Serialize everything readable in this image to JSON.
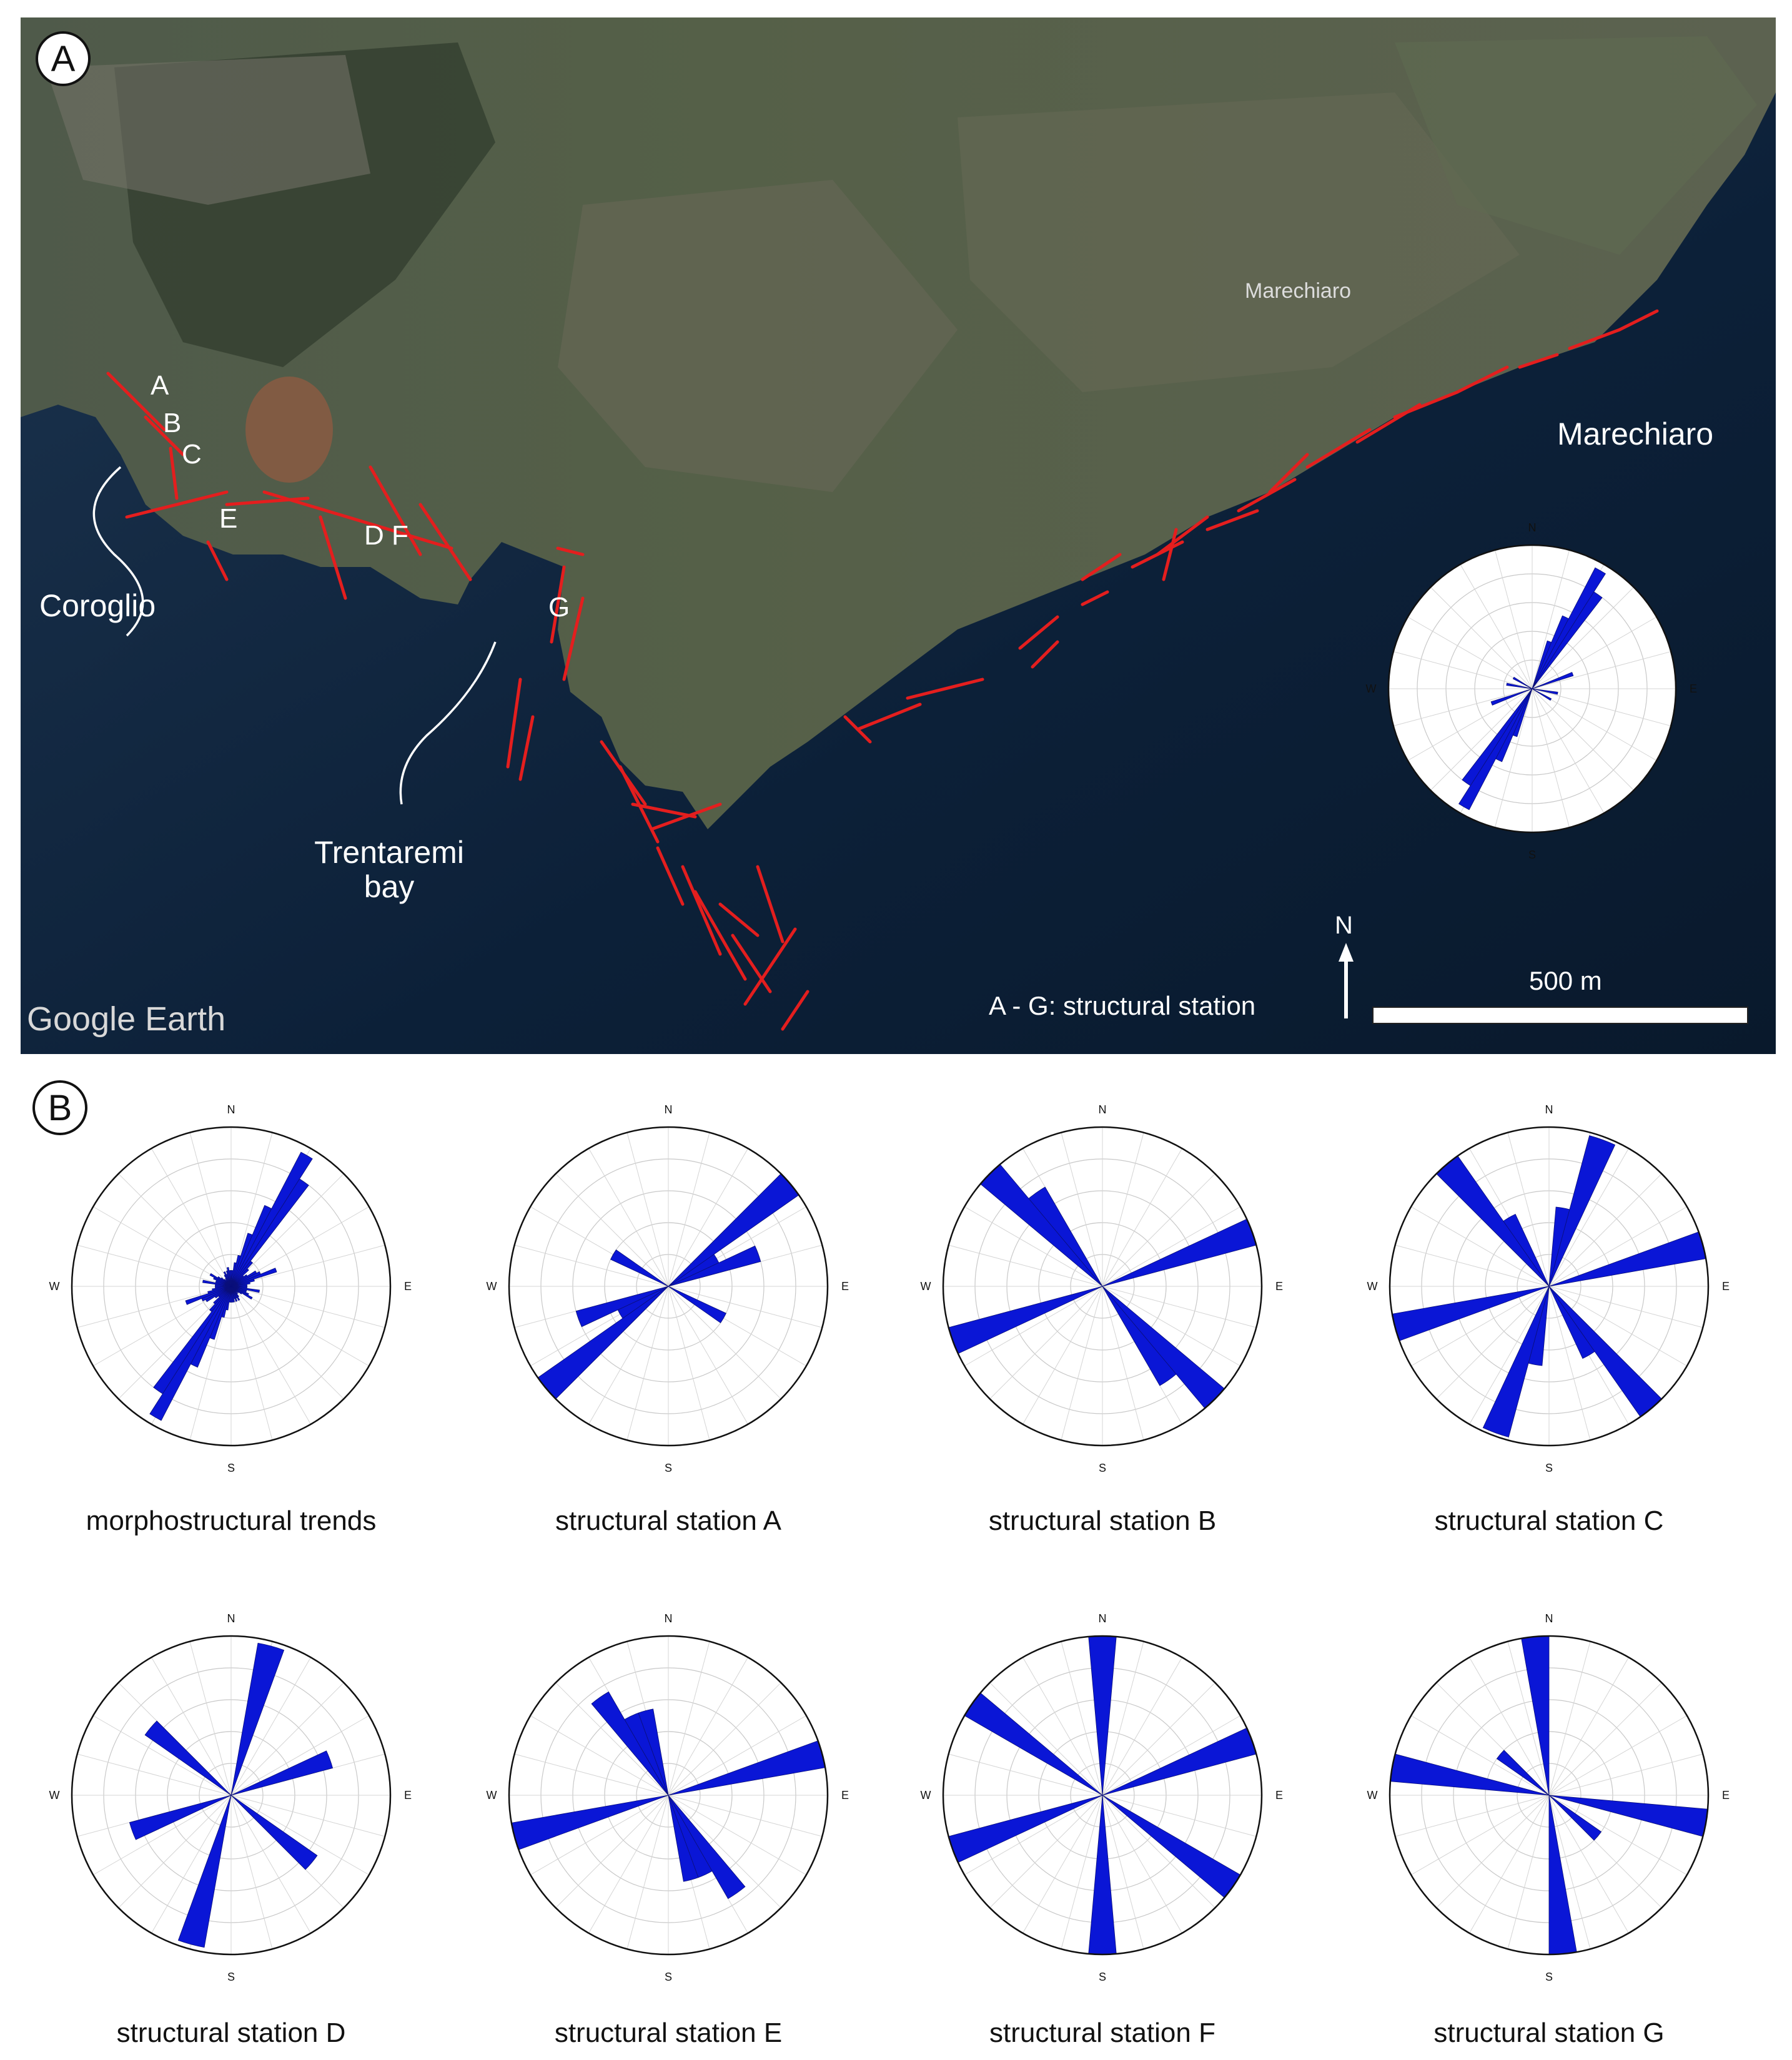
{
  "panel_a": {
    "panel_letter": "A",
    "place_labels": {
      "coroglio": "Coroglio",
      "trentaremi": "Trentaremi\nbay",
      "marechiaro": "Marechiaro",
      "marechiaro_small": "Marechiaro"
    },
    "station_letters": [
      "A",
      "B",
      "C",
      "D F",
      "E",
      "G"
    ],
    "watermark": "Google Earth",
    "legend_text": "A - G: structural station",
    "scale_label": "500 m",
    "north_label": "N",
    "colors": {
      "lineaments": "#e41e1e",
      "rose_petals": "#0a16d6"
    }
  },
  "panel_b": {
    "panel_letter": "B"
  },
  "chart_data": [
    {
      "type": "rose",
      "title": "",
      "caption": "morphostructural trends",
      "direction_labels": [
        "N",
        "E",
        "S",
        "W"
      ],
      "bin_width_deg": 5,
      "values": [
        [
          0,
          0.1
        ],
        [
          5,
          0.1
        ],
        [
          10,
          0.15
        ],
        [
          15,
          0.2
        ],
        [
          20,
          0.35
        ],
        [
          25,
          0.55
        ],
        [
          30,
          0.95
        ],
        [
          35,
          0.8
        ],
        [
          40,
          0.2
        ],
        [
          45,
          0.15
        ],
        [
          50,
          0.1
        ],
        [
          55,
          0.12
        ],
        [
          60,
          0.18
        ],
        [
          65,
          0.2
        ],
        [
          70,
          0.3
        ],
        [
          75,
          0.15
        ],
        [
          80,
          0.12
        ],
        [
          85,
          0.1
        ],
        [
          90,
          0.1
        ],
        [
          95,
          0.1
        ],
        [
          100,
          0.18
        ],
        [
          105,
          0.1
        ],
        [
          110,
          0.1
        ],
        [
          115,
          0.12
        ],
        [
          120,
          0.15
        ],
        [
          125,
          0.08
        ],
        [
          130,
          0.06
        ],
        [
          135,
          0.05
        ],
        [
          140,
          0.06
        ],
        [
          145,
          0.08
        ],
        [
          150,
          0.1
        ],
        [
          155,
          0.08
        ],
        [
          160,
          0.1
        ],
        [
          165,
          0.08
        ],
        [
          170,
          0.1
        ],
        [
          175,
          0.1
        ],
        [
          180,
          0.1
        ],
        [
          185,
          0.1
        ],
        [
          190,
          0.15
        ],
        [
          195,
          0.2
        ],
        [
          200,
          0.35
        ],
        [
          205,
          0.55
        ],
        [
          210,
          0.95
        ],
        [
          215,
          0.8
        ],
        [
          220,
          0.2
        ],
        [
          225,
          0.15
        ],
        [
          230,
          0.1
        ],
        [
          235,
          0.12
        ],
        [
          240,
          0.18
        ],
        [
          245,
          0.2
        ],
        [
          250,
          0.3
        ],
        [
          255,
          0.15
        ],
        [
          260,
          0.12
        ],
        [
          265,
          0.1
        ],
        [
          270,
          0.1
        ],
        [
          275,
          0.1
        ],
        [
          280,
          0.18
        ],
        [
          285,
          0.1
        ],
        [
          290,
          0.1
        ],
        [
          295,
          0.12
        ],
        [
          300,
          0.15
        ],
        [
          305,
          0.1
        ],
        [
          310,
          0.08
        ],
        [
          315,
          0.06
        ],
        [
          320,
          0.05
        ],
        [
          325,
          0.06
        ],
        [
          330,
          0.08
        ],
        [
          335,
          0.1
        ],
        [
          340,
          0.08
        ],
        [
          345,
          0.1
        ],
        [
          350,
          0.12
        ],
        [
          355,
          0.1
        ]
      ]
    },
    {
      "type": "rose",
      "title": "",
      "caption": "structural station A",
      "direction_labels": [
        "N",
        "E",
        "S",
        "W"
      ],
      "bin_width_deg": 10,
      "values": [
        [
          50,
          1.0
        ],
        [
          60,
          0.35
        ],
        [
          70,
          0.6
        ],
        [
          120,
          0.4
        ],
        [
          230,
          1.0
        ],
        [
          240,
          0.35
        ],
        [
          250,
          0.6
        ],
        [
          300,
          0.4
        ]
      ]
    },
    {
      "type": "rose",
      "title": "",
      "caption": "structural station B",
      "direction_labels": [
        "N",
        "E",
        "S",
        "W"
      ],
      "bin_width_deg": 10,
      "values": [
        [
          70,
          1.0
        ],
        [
          135,
          1.0
        ],
        [
          145,
          0.72
        ],
        [
          250,
          1.0
        ],
        [
          315,
          1.0
        ],
        [
          325,
          0.72
        ]
      ]
    },
    {
      "type": "rose",
      "title": "",
      "caption": "structural station C",
      "direction_labels": [
        "N",
        "E",
        "S",
        "W"
      ],
      "bin_width_deg": 10,
      "values": [
        [
          10,
          0.5
        ],
        [
          20,
          0.98
        ],
        [
          75,
          1.0
        ],
        [
          140,
          1.0
        ],
        [
          150,
          0.5
        ],
        [
          190,
          0.5
        ],
        [
          200,
          0.98
        ],
        [
          255,
          1.0
        ],
        [
          320,
          1.0
        ],
        [
          330,
          0.5
        ]
      ]
    },
    {
      "type": "rose",
      "title": "",
      "caption": "structural station D",
      "direction_labels": [
        "N",
        "E",
        "S",
        "W"
      ],
      "bin_width_deg": 10,
      "values": [
        [
          15,
          0.97
        ],
        [
          70,
          0.66
        ],
        [
          130,
          0.66
        ],
        [
          195,
          0.97
        ],
        [
          250,
          0.66
        ],
        [
          310,
          0.66
        ]
      ]
    },
    {
      "type": "rose",
      "title": "",
      "caption": "structural station E",
      "direction_labels": [
        "N",
        "E",
        "S",
        "W"
      ],
      "bin_width_deg": 10,
      "values": [
        [
          75,
          1.0
        ],
        [
          145,
          0.75
        ],
        [
          155,
          0.55
        ],
        [
          165,
          0.55
        ],
        [
          255,
          1.0
        ],
        [
          325,
          0.75
        ],
        [
          335,
          0.55
        ],
        [
          345,
          0.55
        ]
      ]
    },
    {
      "type": "rose",
      "title": "",
      "caption": "structural station F",
      "direction_labels": [
        "N",
        "E",
        "S",
        "W"
      ],
      "bin_width_deg": 10,
      "values": [
        [
          0,
          1.0
        ],
        [
          70,
          1.0
        ],
        [
          125,
          1.0
        ],
        [
          180,
          1.0
        ],
        [
          250,
          1.0
        ],
        [
          305,
          1.0
        ]
      ]
    },
    {
      "type": "rose",
      "title": "",
      "caption": "structural station G",
      "direction_labels": [
        "N",
        "E",
        "S",
        "W"
      ],
      "bin_width_deg": 10,
      "values": [
        [
          100,
          1.0
        ],
        [
          130,
          0.4
        ],
        [
          175,
          1.0
        ],
        [
          280,
          1.0
        ],
        [
          310,
          0.4
        ],
        [
          355,
          1.0
        ]
      ]
    },
    {
      "type": "rose",
      "title": "",
      "caption": "",
      "direction_labels": [
        "N",
        "E",
        "S",
        "W"
      ],
      "bin_width_deg": 5,
      "values": [
        [
          20,
          0.35
        ],
        [
          25,
          0.55
        ],
        [
          30,
          0.95
        ],
        [
          35,
          0.8
        ],
        [
          70,
          0.3
        ],
        [
          200,
          0.35
        ],
        [
          205,
          0.55
        ],
        [
          210,
          0.95
        ],
        [
          215,
          0.8
        ],
        [
          250,
          0.3
        ],
        [
          280,
          0.18
        ],
        [
          300,
          0.15
        ],
        [
          100,
          0.18
        ],
        [
          120,
          0.15
        ]
      ]
    }
  ]
}
